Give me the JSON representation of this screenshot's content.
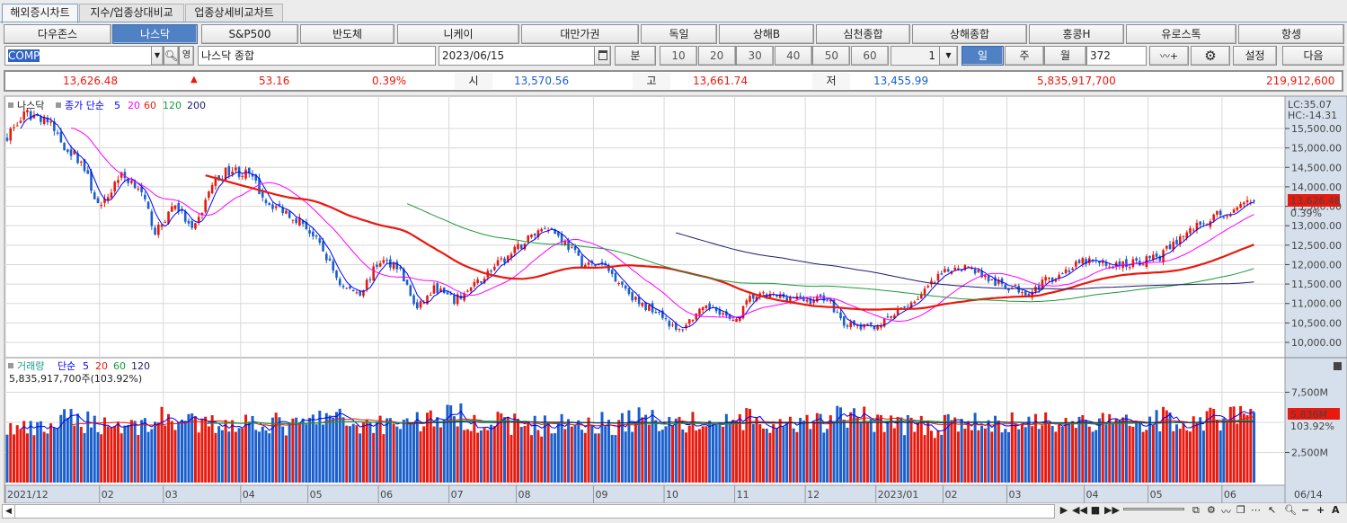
{
  "tabs": [
    "해외증시차트",
    "지수/업종상대비교",
    "업종상세비교차트"
  ],
  "indices": [
    "다우존스",
    "나스닥",
    "S&P500",
    "반도체",
    "니케이",
    "대만가권",
    "독일",
    "상해B",
    "심천종합",
    "상해종합",
    "홍콩H",
    "유로스톡",
    "항셍"
  ],
  "selected_index": "나스닥",
  "toolbar": {
    "code": "COMP",
    "name": "나스닥 종합",
    "date": "2023/06/15",
    "minute_label": "분",
    "minute_options": [
      "10",
      "20",
      "30",
      "40",
      "50",
      "60"
    ],
    "tick_value": "1",
    "periods": [
      "일",
      "주",
      "월"
    ],
    "selected_period": "일",
    "count": "372",
    "settings_label": "설정",
    "next_label": "다음",
    "eng_label": "영"
  },
  "quote": {
    "price": "13,626.48",
    "change_arrow": "▲",
    "change": "53.16",
    "change_pct": "0.39%",
    "open_label": "시",
    "open": "13,570.56",
    "high_label": "고",
    "high": "13,661.74",
    "low_label": "저",
    "low": "13,455.99",
    "volume": "5,835,917,700",
    "amount": "219,912,600"
  },
  "colors": {
    "up": "#e8190e",
    "down": "#1a5fcc",
    "ma5": "#0000ff",
    "ma20": "#ff00ff",
    "ma60": "#e8190e",
    "ma120": "#1a9a3a",
    "ma200": "#1c1c6e",
    "accent": "#4f81c4",
    "axis_bg": "#d6e0ec"
  },
  "price_legend": {
    "name": "나스닥",
    "type": "종가 단순",
    "ma": [
      "5",
      "20",
      "60",
      "120",
      "200"
    ]
  },
  "volume_legend": {
    "name": "거래량",
    "type": "단순",
    "ma": [
      "5",
      "20",
      "60",
      "120"
    ],
    "value": "5,835,917,700주(103.92%)"
  },
  "chart_data": {
    "type": "candlestick",
    "bars": 372,
    "price_ylim": [
      9800,
      16000
    ],
    "price_ticks": [
      "15,500.00",
      "15,000.00",
      "14,500.00",
      "14,000.00",
      "13,500.00",
      "13,000.00",
      "12,500.00",
      "12,000.00",
      "11,500.00",
      "11,000.00",
      "10,500.00",
      "10,000.00"
    ],
    "price_tick_values": [
      15500,
      15000,
      14500,
      14000,
      13500,
      13000,
      12500,
      12000,
      11500,
      11000,
      10500,
      10000
    ],
    "close_samples": [
      15340,
      15850,
      15800,
      15100,
      14640,
      13370,
      14300,
      14070,
      12800,
      13600,
      12800,
      14070,
      14460,
      14300,
      13600,
      13370,
      13030,
      12330,
      11410,
      11290,
      12100,
      11990,
      10830,
      11410,
      11060,
      11410,
      11870,
      12220,
      12680,
      13030,
      12560,
      11990,
      11990,
      11530,
      10950,
      10830,
      10250,
      10720,
      10950,
      10480,
      11180,
      11180,
      11180,
      11060,
      11180,
      10480,
      10370,
      10480,
      10830,
      11180,
      11640,
      11990,
      11870,
      11530,
      11410,
      11290,
      11640,
      11870,
      12100,
      11990,
      11990,
      12100,
      12220,
      12680,
      13030,
      13260,
      13370,
      13626.48
    ],
    "last": {
      "close": "13,626.48",
      "change_pct": "0.39%"
    },
    "lc": "LC:35.07",
    "hc": "HC:-14.31",
    "volume_ylim": [
      0,
      10000
    ],
    "volume_ticks": [
      "7,500M",
      "2,500M"
    ],
    "volume_tick_values": [
      7500,
      2500
    ],
    "volume_samples_m": [
      4500,
      4300,
      5300,
      4900,
      4700,
      5400,
      4700,
      5000,
      5100,
      4600,
      5500,
      4800,
      5000,
      5200,
      5600,
      5000,
      4900,
      4700,
      5100,
      4900,
      5400,
      5000,
      4800,
      5300,
      4500,
      4700,
      5500,
      5300,
      4900,
      4600,
      5000,
      4800,
      5100,
      5200,
      4900,
      5000,
      5300,
      5100,
      5400,
      5836
    ],
    "volume_last": {
      "value": "5,836M",
      "pct": "103.92%"
    },
    "x_labels": [
      "2021/12",
      "02",
      "03",
      "04",
      "05",
      "06",
      "07",
      "08",
      "09",
      "10",
      "11",
      "12",
      "2023/01",
      "02",
      "03",
      "04",
      "05",
      "06"
    ],
    "x_label_bars": [
      0,
      28,
      47,
      70,
      90,
      111,
      132,
      152,
      175,
      196,
      217,
      238,
      259,
      279,
      298,
      321,
      340,
      362
    ],
    "last_date": "06/14"
  }
}
